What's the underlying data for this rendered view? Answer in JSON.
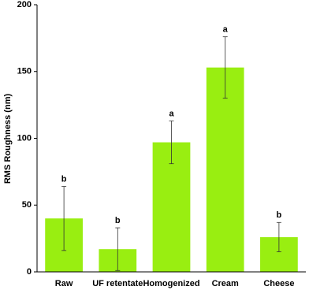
{
  "chart_data": {
    "type": "bar",
    "y_label": "RMS Roughness (nm)",
    "categories": [
      "Raw",
      "UF retentate",
      "Homogenized",
      "Cream",
      "Cheese"
    ],
    "values": [
      40,
      17,
      97,
      153,
      26
    ],
    "errors": [
      24,
      16,
      16,
      23,
      11
    ],
    "annotations": [
      "b",
      "b",
      "a",
      "a",
      "b"
    ],
    "color": "#99ee11",
    "ylim": [
      0,
      200
    ],
    "yticks": [
      0,
      50,
      100,
      150,
      200
    ],
    "grid": false
  }
}
